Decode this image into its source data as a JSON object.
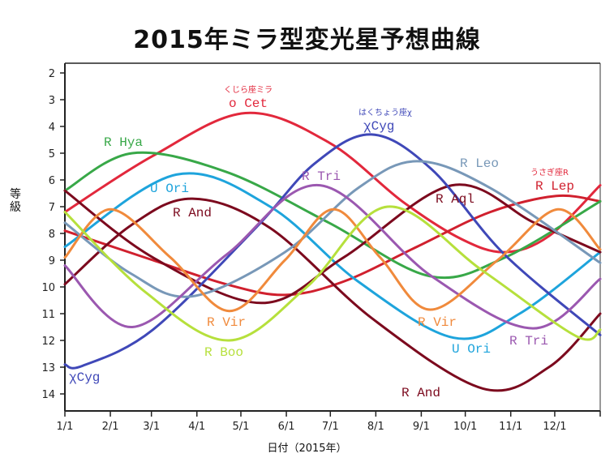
{
  "chart_data": {
    "type": "line",
    "title": "2015年ミラ型変光星予想曲線",
    "xlabel": "日付（2015年）",
    "ylabel": "等級",
    "xlim_days": [
      0,
      365
    ],
    "ylim": [
      1.65,
      14.65
    ],
    "y_inverted": true,
    "grid": false,
    "x_ticks": [
      {
        "label": "1/1",
        "day": 0
      },
      {
        "label": "2/1",
        "day": 31
      },
      {
        "label": "3/1",
        "day": 59
      },
      {
        "label": "4/1",
        "day": 90
      },
      {
        "label": "5/1",
        "day": 120
      },
      {
        "label": "6/1",
        "day": 151
      },
      {
        "label": "7/1",
        "day": 181
      },
      {
        "label": "8/1",
        "day": 212
      },
      {
        "label": "9/1",
        "day": 243
      },
      {
        "label": "10/1",
        "day": 273
      },
      {
        "label": "11/1",
        "day": 304
      },
      {
        "label": "12/1",
        "day": 334
      }
    ],
    "y_ticks": [
      2,
      3,
      4,
      5,
      6,
      7,
      8,
      9,
      10,
      11,
      12,
      13,
      14
    ],
    "series": [
      {
        "name": "o Cet",
        "color": "#e2283c",
        "points": [
          [
            0,
            7.2
          ],
          [
            60,
            5.1
          ],
          [
            123,
            3.5
          ],
          [
            180,
            4.6
          ],
          [
            230,
            6.8
          ],
          [
            270,
            8.2
          ],
          [
            300,
            8.7
          ],
          [
            330,
            8.1
          ],
          [
            365,
            6.2
          ]
        ]
      },
      {
        "name": "R Lep",
        "color": "#d0202e",
        "points": [
          [
            0,
            7.9
          ],
          [
            60,
            9.0
          ],
          [
            110,
            9.9
          ],
          [
            150,
            10.3
          ],
          [
            190,
            9.8
          ],
          [
            240,
            8.5
          ],
          [
            290,
            7.2
          ],
          [
            335,
            6.6
          ],
          [
            365,
            6.8
          ]
        ]
      },
      {
        "name": "R Hya",
        "color": "#38a848",
        "points": [
          [
            0,
            6.4
          ],
          [
            46,
            5.0
          ],
          [
            110,
            5.7
          ],
          [
            180,
            7.6
          ],
          [
            249,
            9.6
          ],
          [
            300,
            8.9
          ],
          [
            365,
            6.8
          ]
        ]
      },
      {
        "name": "U Ori",
        "color": "#1ea4dc",
        "points": [
          [
            0,
            8.5
          ],
          [
            76,
            5.8
          ],
          [
            140,
            7.0
          ],
          [
            200,
            9.8
          ],
          [
            265,
            11.9
          ],
          [
            310,
            11.0
          ],
          [
            365,
            8.7
          ]
        ]
      },
      {
        "name": "R And",
        "color": "#7c0a1e",
        "points": [
          [
            0,
            9.9
          ],
          [
            45,
            7.7
          ],
          [
            87,
            6.7
          ],
          [
            140,
            7.8
          ],
          [
            210,
            11.2
          ],
          [
            285,
            13.8
          ],
          [
            330,
            13.0
          ],
          [
            365,
            11.0
          ]
        ]
      },
      {
        "name": "R Aql",
        "color": "#7c0a1e",
        "points": [
          [
            0,
            6.4
          ],
          [
            60,
            8.9
          ],
          [
            134,
            10.6
          ],
          [
            190,
            8.9
          ],
          [
            264,
            6.2
          ],
          [
            320,
            7.6
          ],
          [
            365,
            8.7
          ]
        ]
      },
      {
        "name": "χ Cyg",
        "color": "#3f48b8",
        "points": [
          [
            0,
            12.9
          ],
          [
            12,
            12.95
          ],
          [
            60,
            11.6
          ],
          [
            130,
            7.8
          ],
          [
            170,
            5.4
          ],
          [
            209,
            4.3
          ],
          [
            250,
            5.6
          ],
          [
            300,
            8.8
          ],
          [
            365,
            11.8
          ]
        ]
      },
      {
        "name": "R Leo",
        "color": "#7898b8",
        "points": [
          [
            0,
            7.6
          ],
          [
            45,
            9.5
          ],
          [
            87,
            10.35
          ],
          [
            150,
            8.7
          ],
          [
            200,
            6.3
          ],
          [
            240,
            5.3
          ],
          [
            290,
            6.3
          ],
          [
            365,
            9.1
          ]
        ]
      },
      {
        "name": "R Tri",
        "color": "#9b58b0",
        "points": [
          [
            0,
            9.2
          ],
          [
            46,
            11.5
          ],
          [
            110,
            8.8
          ],
          [
            174,
            6.2
          ],
          [
            250,
            9.6
          ],
          [
            319,
            11.55
          ],
          [
            365,
            9.7
          ]
        ]
      },
      {
        "name": "R Vir",
        "color": "#f08a3c",
        "points": [
          [
            0,
            8.9
          ],
          [
            31,
            7.1
          ],
          [
            72,
            8.9
          ],
          [
            112,
            10.9
          ],
          [
            150,
            9.0
          ],
          [
            183,
            7.1
          ],
          [
            215,
            8.9
          ],
          [
            249,
            10.85
          ],
          [
            295,
            9.0
          ],
          [
            336,
            7.1
          ],
          [
            365,
            8.6
          ]
        ]
      },
      {
        "name": "R Boo",
        "color": "#b6e03c",
        "points": [
          [
            0,
            7.2
          ],
          [
            55,
            10.2
          ],
          [
            112,
            12.0
          ],
          [
            165,
            10.0
          ],
          [
            220,
            7.0
          ],
          [
            285,
            9.4
          ],
          [
            349,
            11.85
          ],
          [
            365,
            11.6
          ]
        ]
      }
    ],
    "labels": [
      {
        "text": "R Hya",
        "series": "R Hya"
      },
      {
        "text": "o Cet",
        "series": "o Cet",
        "sub": "くじら座ミラ"
      },
      {
        "text": "χCyg",
        "series": "χ Cyg",
        "sub": "はくちょう座χ"
      },
      {
        "text": "R Leo",
        "series": "R Leo"
      },
      {
        "text": "R Tri",
        "series": "R Tri"
      },
      {
        "text": "U Ori",
        "series": "U Ori"
      },
      {
        "text": "R And",
        "series": "R And"
      },
      {
        "text": "R Aql",
        "series": "R Aql"
      },
      {
        "text": "R Lep",
        "series": "R Lep",
        "sub": "うさぎ座R"
      },
      {
        "text": "R Vir",
        "series": "R Vir"
      },
      {
        "text": "R Vir",
        "series": "R Vir"
      },
      {
        "text": "R Boo",
        "series": "R Boo"
      },
      {
        "text": "U Ori",
        "series": "U Ori"
      },
      {
        "text": "R Tri",
        "series": "R Tri"
      },
      {
        "text": "χCyg",
        "series": "χ Cyg"
      },
      {
        "text": "R And",
        "series": "R And"
      }
    ]
  }
}
